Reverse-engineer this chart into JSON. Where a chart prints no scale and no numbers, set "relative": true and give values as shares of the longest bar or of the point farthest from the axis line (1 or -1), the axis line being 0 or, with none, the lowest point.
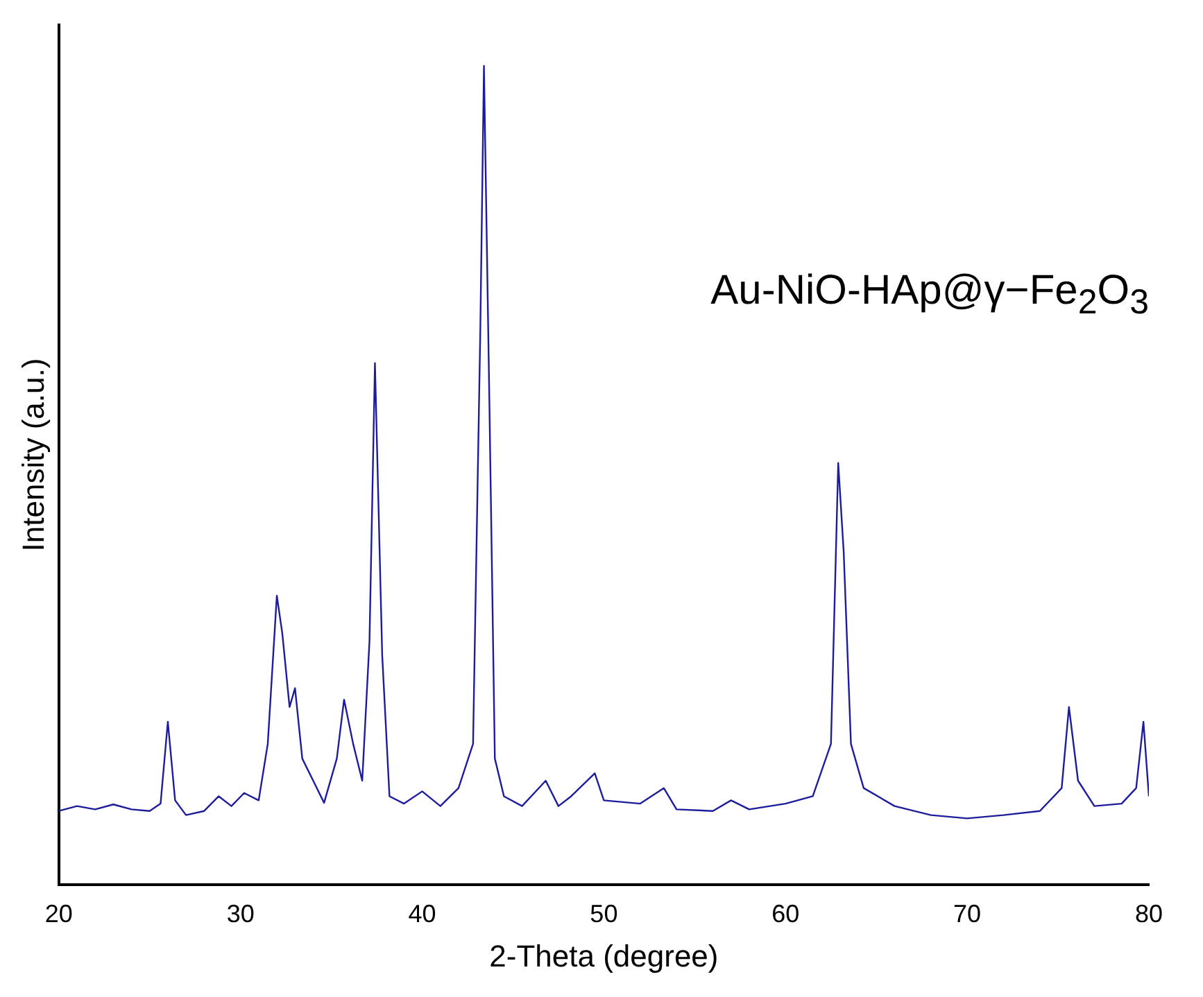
{
  "chart_data": {
    "type": "line",
    "xlabel": "2-Theta (degree)",
    "ylabel": "Intensity (a.u.)",
    "relative": true,
    "annotations": [
      "Au-NiO-HAp@γ−Fe$_{2}$O$_{3}$"
    ],
    "xlim": [
      20,
      80
    ],
    "xticks": [
      20,
      30,
      40,
      50,
      60,
      70,
      80
    ],
    "grid": false,
    "legend": false,
    "marker": "none",
    "line_style": "solid",
    "series": [
      {
        "color": "#1c1c9c",
        "x": [
          20,
          21,
          22,
          23,
          24,
          25,
          25.6,
          26.0,
          26.4,
          27,
          28,
          28.8,
          29.5,
          30.2,
          31,
          31.5,
          32.0,
          32.3,
          32.7,
          33.0,
          33.4,
          34,
          34.6,
          35.3,
          35.7,
          36.2,
          36.7,
          37.1,
          37.4,
          37.8,
          38.2,
          39,
          40,
          41,
          42,
          42.8,
          43.2,
          43.4,
          43.7,
          44.0,
          44.5,
          45.5,
          46.8,
          47.5,
          48.2,
          49.5,
          50,
          52,
          53.3,
          54,
          56,
          57,
          58,
          60,
          61.5,
          62.5,
          62.9,
          63.2,
          63.6,
          64.3,
          66,
          68,
          70,
          72,
          74,
          75.2,
          75.6,
          76.1,
          77,
          78.5,
          79.3,
          79.7,
          80
        ],
        "values": [
          0.09,
          0.096,
          0.092,
          0.098,
          0.092,
          0.09,
          0.099,
          0.199,
          0.103,
          0.085,
          0.09,
          0.108,
          0.096,
          0.112,
          0.103,
          0.172,
          0.353,
          0.307,
          0.217,
          0.24,
          0.154,
          0.127,
          0.1,
          0.154,
          0.226,
          0.172,
          0.127,
          0.298,
          0.637,
          0.28,
          0.108,
          0.099,
          0.114,
          0.096,
          0.118,
          0.172,
          0.678,
          1,
          0.588,
          0.154,
          0.108,
          0.096,
          0.127,
          0.096,
          0.108,
          0.136,
          0.103,
          0.099,
          0.118,
          0.092,
          0.09,
          0.103,
          0.092,
          0.099,
          0.108,
          0.172,
          0.515,
          0.407,
          0.172,
          0.118,
          0.096,
          0.085,
          0.081,
          0.085,
          0.09,
          0.118,
          0.217,
          0.127,
          0.096,
          0.099,
          0.118,
          0.199,
          0.108
        ]
      }
    ]
  }
}
